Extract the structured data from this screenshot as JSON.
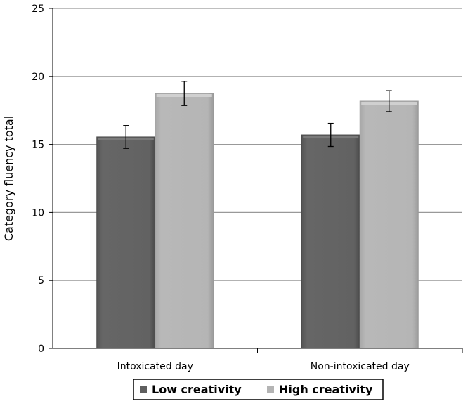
{
  "chart_data": {
    "type": "bar",
    "title": "",
    "xlabel": "",
    "ylabel": "Category fluency total",
    "ylim": [
      0,
      25
    ],
    "yticks": [
      0,
      5,
      10,
      15,
      20,
      25
    ],
    "grid": true,
    "legend_position": "bottom",
    "categories": [
      "Intoxicated day",
      "Non-intoxicated day"
    ],
    "series": [
      {
        "name": "Low creativity",
        "values": [
          15.55,
          15.7
        ],
        "errors": [
          0.84,
          0.85
        ],
        "color": "#5f5f5f"
      },
      {
        "name": "High creativity",
        "values": [
          18.75,
          18.18
        ],
        "errors": [
          0.89,
          0.77
        ],
        "color": "#b4b4b4"
      }
    ]
  }
}
